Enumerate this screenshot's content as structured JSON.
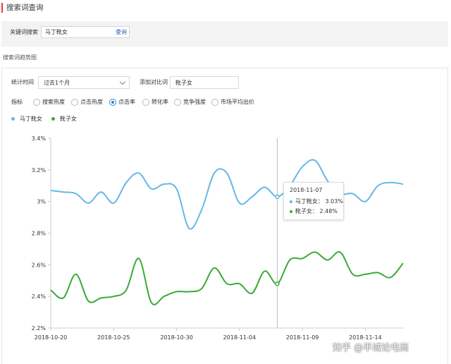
{
  "page_title": "搜索词查询",
  "keyword": {
    "label": "关键词搜索",
    "value": "马丁靴女",
    "button": "查询"
  },
  "section_title": "搜索词趋势图",
  "filters": {
    "time_label": "统计时间",
    "time_value": "过去1个月",
    "compare_label": "添加对比词",
    "compare_value": "靴子女"
  },
  "metrics": {
    "label": "指标",
    "options": [
      "搜索热度",
      "点击热度",
      "点击率",
      "转化率",
      "竞争强度",
      "市场平均出价"
    ],
    "selected": "点击率"
  },
  "colors": {
    "series1": "#64b8e8",
    "series2": "#3aaa35",
    "accent": "#e4393c",
    "link": "#1a5dbd"
  },
  "tooltip": {
    "date": "2018-11-07",
    "line1": "马丁靴女： 3.03%",
    "line2": "靴子女： 2.48%"
  },
  "watermark": "知乎 @半城论电商",
  "chart_data": {
    "type": "line",
    "x": [
      "2018-10-20",
      "2018-10-21",
      "2018-10-22",
      "2018-10-23",
      "2018-10-24",
      "2018-10-25",
      "2018-10-26",
      "2018-10-27",
      "2018-10-28",
      "2018-10-29",
      "2018-10-30",
      "2018-10-31",
      "2018-11-01",
      "2018-11-02",
      "2018-11-03",
      "2018-11-04",
      "2018-11-05",
      "2018-11-06",
      "2018-11-07",
      "2018-11-08",
      "2018-11-09",
      "2018-11-10",
      "2018-11-11",
      "2018-11-12",
      "2018-11-13",
      "2018-11-14",
      "2018-11-15",
      "2018-11-16",
      "2018-11-17"
    ],
    "x_ticks": [
      "2018-10-20",
      "2018-10-25",
      "2018-10-30",
      "2018-11-04",
      "2018-11-09",
      "2018-11-14"
    ],
    "y_ticks": [
      "2.2%",
      "2.4%",
      "2.6%",
      "2.8%",
      "3%",
      "3.2%",
      "3.4%"
    ],
    "ylim": [
      2.2,
      3.4
    ],
    "grid": false,
    "legend": "top-left",
    "series": [
      {
        "name": "马丁靴女",
        "values": [
          3.07,
          3.06,
          3.05,
          2.99,
          3.06,
          2.99,
          3.12,
          3.18,
          3.08,
          3.11,
          3.08,
          2.83,
          2.95,
          3.18,
          3.18,
          2.99,
          3.03,
          3.09,
          3.03,
          3.1,
          3.22,
          3.26,
          3.13,
          3.05,
          3.05,
          3.0,
          3.1,
          3.12,
          3.11
        ]
      },
      {
        "name": "靴子女",
        "values": [
          2.44,
          2.39,
          2.54,
          2.37,
          2.39,
          2.4,
          2.44,
          2.64,
          2.36,
          2.4,
          2.43,
          2.43,
          2.45,
          2.58,
          2.48,
          2.48,
          2.42,
          2.56,
          2.48,
          2.63,
          2.64,
          2.68,
          2.63,
          2.68,
          2.54,
          2.54,
          2.55,
          2.52,
          2.61
        ]
      }
    ]
  }
}
